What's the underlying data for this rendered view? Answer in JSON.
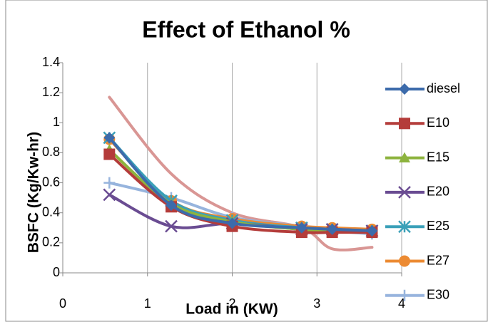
{
  "chart_data": {
    "type": "line",
    "title": "Effect of Ethanol %",
    "x_label": "Load in (KW)",
    "y_label": "BSFC  (Kg/Kw-hr)",
    "x": [
      0.55,
      1.28,
      2.0,
      2.82,
      3.18,
      3.65
    ],
    "xlim": [
      0,
      4
    ],
    "xticks": [
      0,
      1,
      2,
      3,
      4
    ],
    "ylim": [
      0,
      1.4
    ],
    "yticks": [
      0,
      0.2,
      0.4,
      0.6,
      0.8,
      1,
      1.2,
      1.4
    ],
    "grid": true,
    "smooth": true,
    "legend": "right",
    "series": [
      {
        "name": "diesel",
        "color": "#3c6bab",
        "marker": "diamond",
        "values": [
          0.9,
          0.45,
          0.33,
          0.3,
          0.29,
          0.28
        ]
      },
      {
        "name": "E10",
        "color": "#b43c3a",
        "marker": "square",
        "values": [
          0.79,
          0.44,
          0.31,
          0.27,
          0.27,
          0.27
        ]
      },
      {
        "name": "E15",
        "color": "#8db33e",
        "marker": "triangle",
        "values": [
          0.82,
          0.46,
          0.34,
          0.29,
          0.28,
          0.28
        ]
      },
      {
        "name": "E20",
        "color": "#6a4c92",
        "marker": "x",
        "values": [
          0.52,
          0.31,
          0.33,
          0.29,
          0.29,
          0.28
        ]
      },
      {
        "name": "E25",
        "color": "#3aa0b8",
        "marker": "star",
        "values": [
          0.9,
          0.48,
          0.35,
          0.3,
          0.29,
          0.28
        ]
      },
      {
        "name": "E27",
        "color": "#ec8a32",
        "marker": "circle",
        "values": [
          0.89,
          0.48,
          0.36,
          0.31,
          0.3,
          0.29
        ]
      },
      {
        "name": "E30",
        "color": "#97b4dd",
        "marker": "plus",
        "values": [
          0.6,
          0.5,
          0.37,
          0.31,
          0.28,
          0.26
        ]
      },
      {
        "color": "#d99694",
        "marker": "none",
        "values": [
          1.17,
          0.66,
          0.4,
          0.3,
          0.16,
          0.17
        ]
      }
    ]
  }
}
